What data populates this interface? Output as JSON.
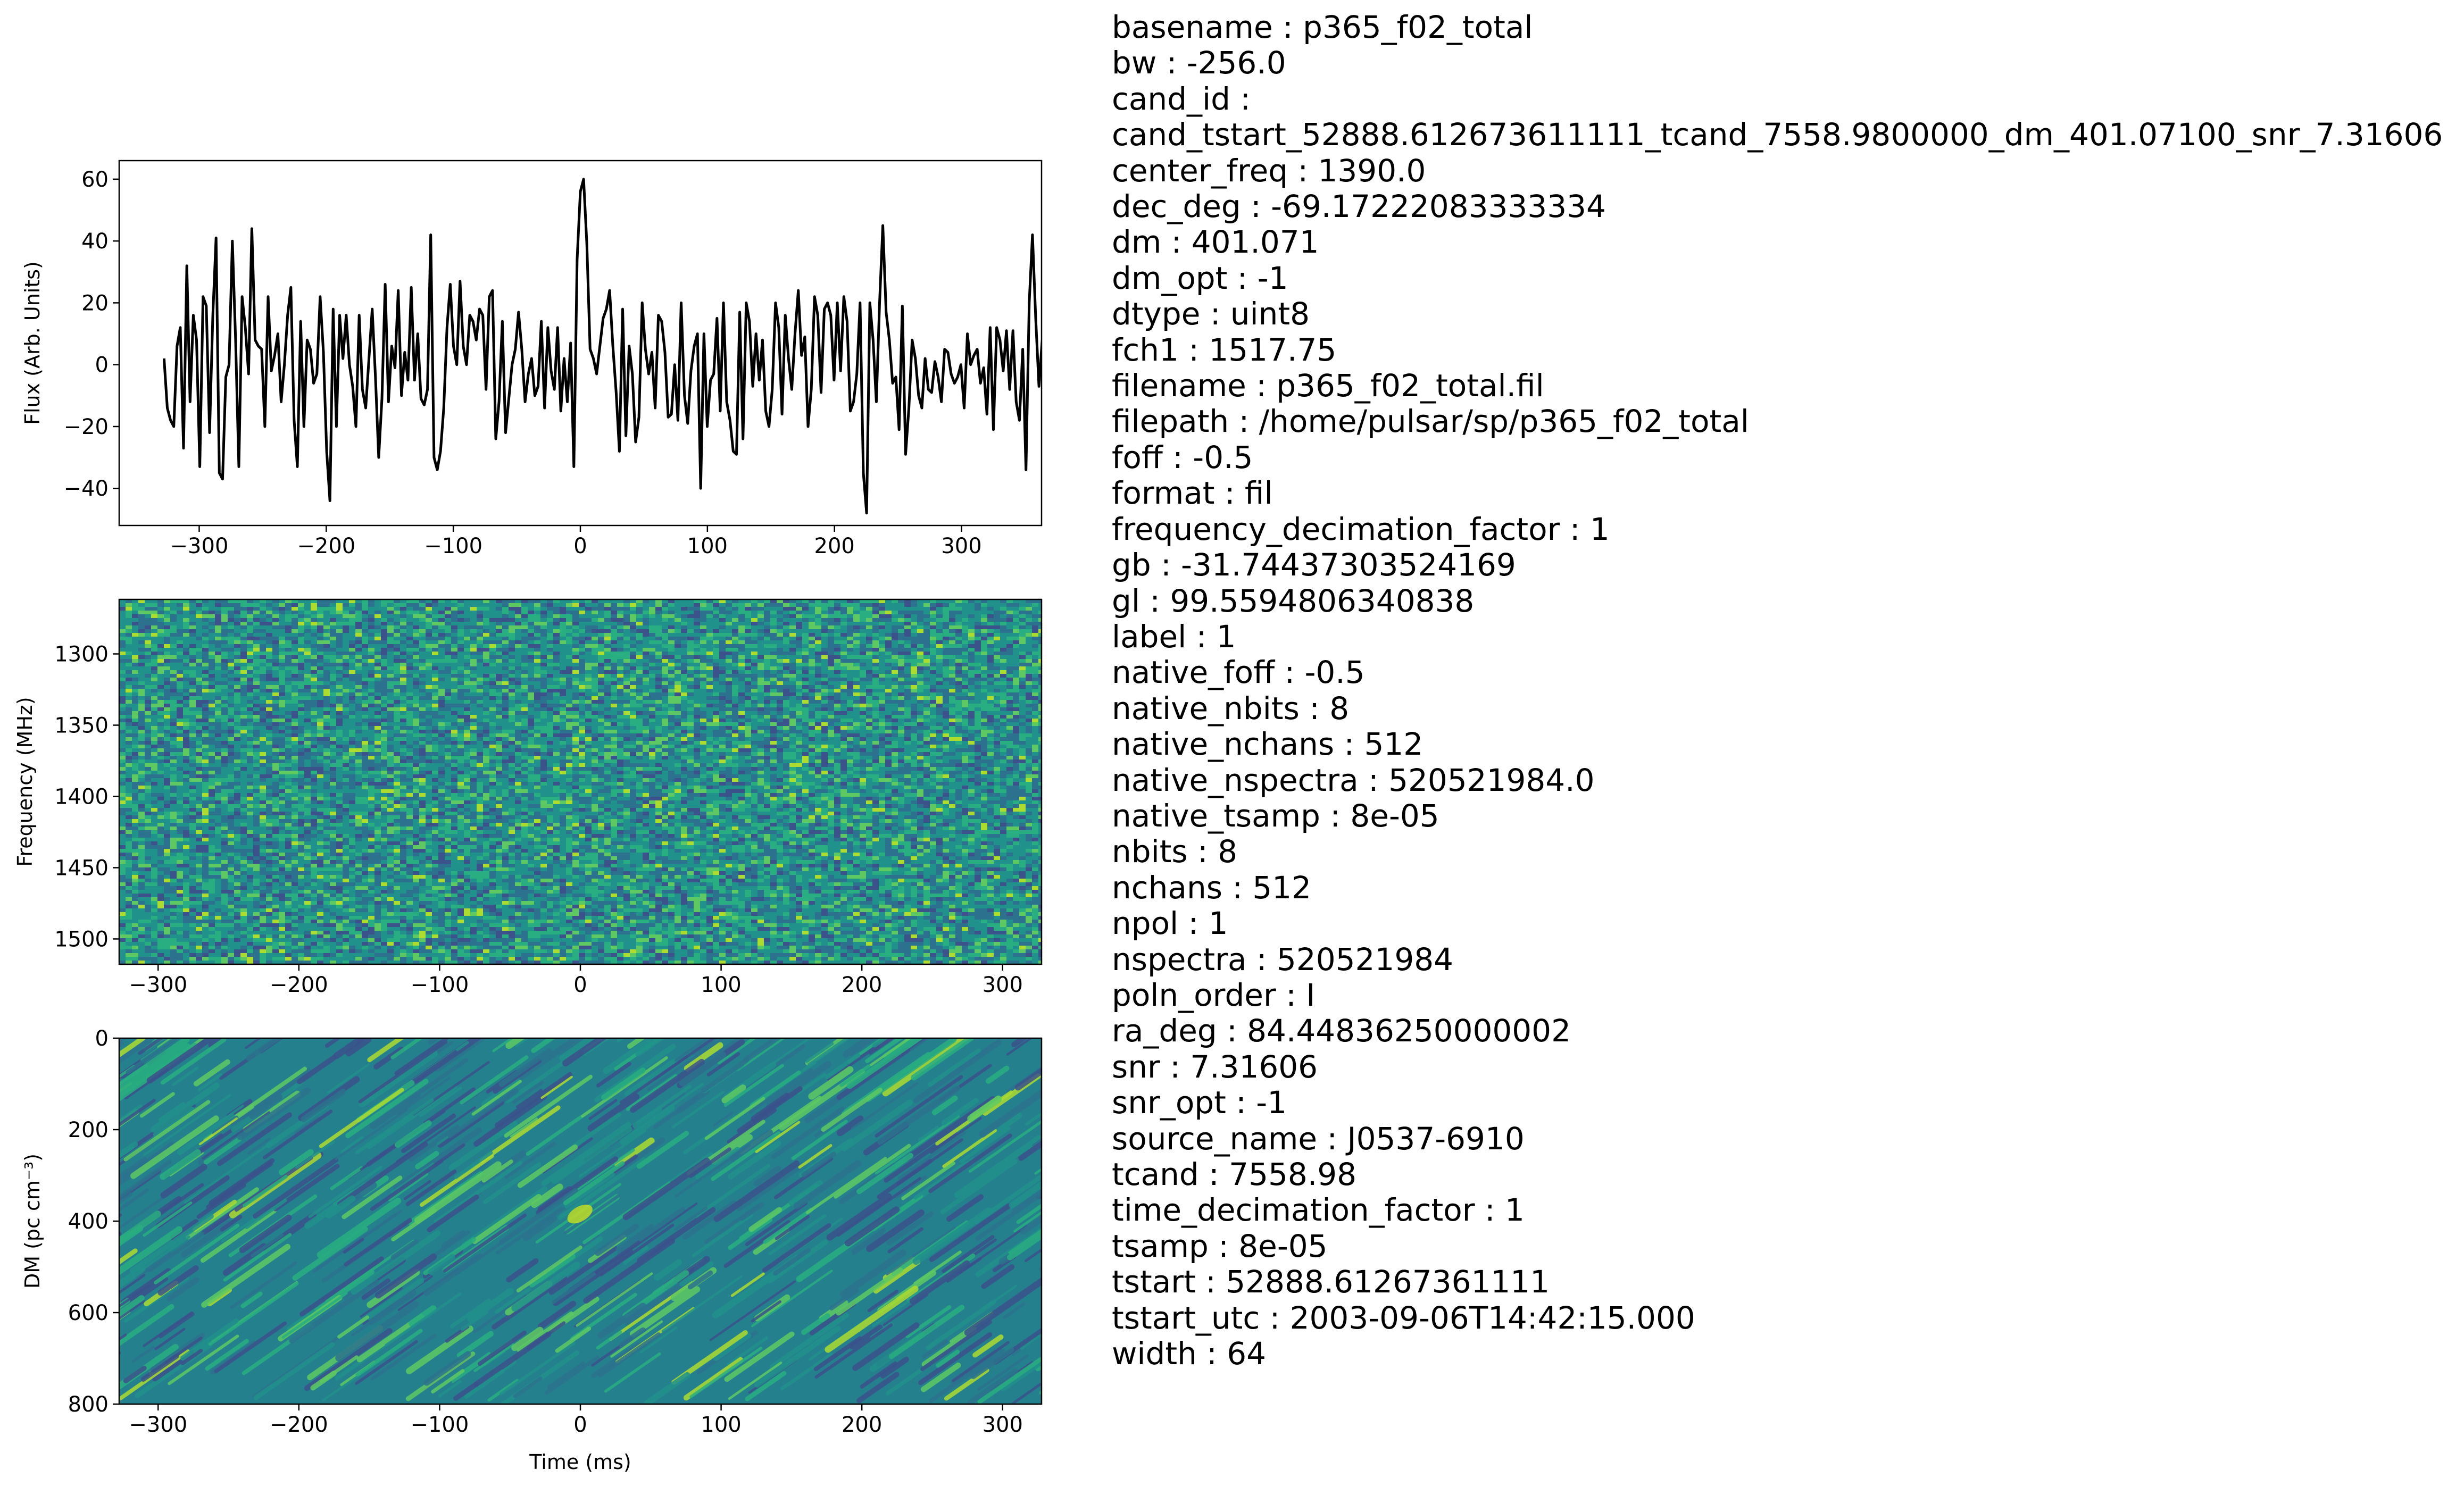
{
  "chart_data": [
    {
      "type": "line",
      "panel": "time-series",
      "title": "",
      "xlabel": "",
      "ylabel": "Flux (Arb. Units)",
      "xlim": [
        -363,
        363
      ],
      "ylim": [
        -52,
        66
      ],
      "xticks": [
        "−300",
        "−200",
        "−100",
        "0",
        "100",
        "200",
        "300"
      ],
      "xtick_values": [
        -300,
        -200,
        -100,
        0,
        100,
        200,
        300
      ],
      "yticks": [
        "−40",
        "−20",
        "0",
        "20",
        "40",
        "60"
      ],
      "ytick_values": [
        -40,
        -20,
        0,
        20,
        40,
        60
      ],
      "line_color": "#000000",
      "x_start": -327.68,
      "x_step": 2.56,
      "values": [
        2,
        -14,
        -18,
        -20,
        6,
        12,
        -27,
        32,
        -12,
        16,
        8,
        -33,
        22,
        19,
        -22,
        16,
        41,
        -35,
        -37,
        -4,
        0,
        40,
        8,
        -33,
        22,
        12,
        -3,
        44,
        8,
        6,
        5,
        -20,
        22,
        -2,
        3,
        10,
        -12,
        0,
        16,
        25,
        -18,
        -33,
        14,
        -20,
        8,
        5,
        -6,
        -3,
        22,
        4,
        -28,
        -44,
        18,
        -20,
        16,
        2,
        16,
        0,
        -7,
        -20,
        16,
        -8,
        -14,
        2,
        18,
        -4,
        -30,
        -11,
        26,
        -12,
        6,
        -1,
        24,
        -10,
        4,
        -5,
        25,
        -5,
        10,
        -11,
        -13,
        -8,
        42,
        -30,
        -34,
        -28,
        -14,
        12,
        26,
        6,
        0,
        27,
        6,
        0,
        16,
        14,
        8,
        18,
        16,
        -8,
        22,
        24,
        -24,
        -12,
        14,
        -22,
        -11,
        0,
        5,
        17,
        5,
        -12,
        -3,
        2,
        -10,
        -7,
        14,
        -14,
        12,
        -2,
        -8,
        12,
        -15,
        2,
        -12,
        7,
        -33,
        34,
        56,
        60,
        39,
        5,
        2,
        -3,
        6,
        15,
        18,
        24,
        6,
        -9,
        -28,
        18,
        -23,
        6,
        -3,
        -25,
        -17,
        20,
        5,
        -3,
        4,
        -14,
        16,
        14,
        4,
        -17,
        -16,
        0,
        -18,
        20,
        -10,
        -19,
        -2,
        6,
        10,
        -40,
        10,
        -20,
        -5,
        -3,
        15,
        -15,
        20,
        -12,
        -18,
        -28,
        -29,
        17,
        -24,
        20,
        14,
        -7,
        10,
        -5,
        8,
        -15,
        -20,
        -8,
        20,
        12,
        -16,
        16,
        2,
        -8,
        10,
        24,
        3,
        9,
        -20,
        -8,
        22,
        16,
        -9,
        18,
        20,
        16,
        -5,
        20,
        -2,
        22,
        14,
        -15,
        -12,
        -3,
        20,
        -35,
        -48,
        20,
        8,
        -12,
        20,
        45,
        17,
        8,
        -6,
        -4,
        -21,
        19,
        -29,
        -14,
        8,
        2,
        -10,
        -14,
        2,
        -8,
        -9,
        1,
        -4,
        -12,
        5,
        4,
        -3,
        -6,
        -4,
        0,
        -14,
        10,
        0,
        3,
        5,
        -6,
        -1,
        -16,
        12,
        -21,
        12,
        8,
        -2,
        11,
        -8,
        11,
        -12,
        -18,
        5,
        -34,
        20,
        42,
        15,
        -7,
        8
      ]
    },
    {
      "type": "heatmap",
      "panel": "frequency-time",
      "title": "",
      "xlabel": "",
      "ylabel": "Frequency (MHz)",
      "xlim": [
        -327.68,
        327.68
      ],
      "ylim": [
        1261.75,
        1517.75
      ],
      "y_inverted": true,
      "xticks": [
        "−300",
        "−200",
        "−100",
        "0",
        "100",
        "200",
        "300"
      ],
      "xtick_values": [
        -300,
        -200,
        -100,
        0,
        100,
        200,
        300
      ],
      "yticks": [
        "1300",
        "1350",
        "1400",
        "1450",
        "1500"
      ],
      "ytick_values": [
        1300,
        1350,
        1400,
        1450,
        1500
      ],
      "colormap": "viridis",
      "description_values": "noise-like dynamic spectrum, values centered mid-range"
    },
    {
      "type": "heatmap",
      "panel": "dm-time",
      "title": "",
      "xlabel": "Time (ms)",
      "ylabel": "DM (pc cm⁻³)",
      "xlim": [
        -327.68,
        327.68
      ],
      "ylim": [
        0,
        800
      ],
      "y_inverted": true,
      "xticks": [
        "−300",
        "−200",
        "−100",
        "0",
        "100",
        "200",
        "300"
      ],
      "xtick_values": [
        -300,
        -200,
        -100,
        0,
        100,
        200,
        300
      ],
      "yticks": [
        "0",
        "200",
        "400",
        "600",
        "800"
      ],
      "ytick_values": [
        0,
        200,
        400,
        600,
        800
      ],
      "colormap": "viridis",
      "description_values": "diagonal striated structure, bright near DM 400 at 0 ms"
    }
  ],
  "colors": {
    "viridis_dark": "#3b528b",
    "viridis_mid": "#21918c",
    "viridis_light": "#5ec962",
    "viridis_bright": "#b5de2b",
    "axis": "#000000",
    "background": "#ffffff"
  },
  "metadata": [
    "basename : p365_f02_total",
    "bw : -256.0",
    "cand_id :",
    "cand_tstart_52888.612673611111_tcand_7558.9800000_dm_401.07100_snr_7.31606",
    "center_freq : 1390.0",
    "dec_deg : -69.17222083333334",
    "dm : 401.071",
    "dm_opt : -1",
    "dtype : uint8",
    "fch1 : 1517.75",
    "filename : p365_f02_total.fil",
    "filepath : /home/pulsar/sp/p365_f02_total",
    "foff : -0.5",
    "format : fil",
    "frequency_decimation_factor : 1",
    "gb : -31.74437303524169",
    "gl : 99.5594806340838",
    "label : 1",
    "native_foff : -0.5",
    "native_nbits : 8",
    "native_nchans : 512",
    "native_nspectra : 520521984.0",
    "native_tsamp : 8e-05",
    "nbits : 8",
    "nchans : 512",
    "npol : 1",
    "nspectra : 520521984",
    "poln_order : I",
    "ra_deg : 84.44836250000002",
    "snr : 7.31606",
    "snr_opt : -1",
    "source_name : J0537-6910",
    "tcand : 7558.98",
    "time_decimation_factor : 1",
    "tsamp : 8e-05",
    "tstart : 52888.61267361111",
    "tstart_utc : 2003-09-06T14:42:15.000",
    "width : 64"
  ]
}
